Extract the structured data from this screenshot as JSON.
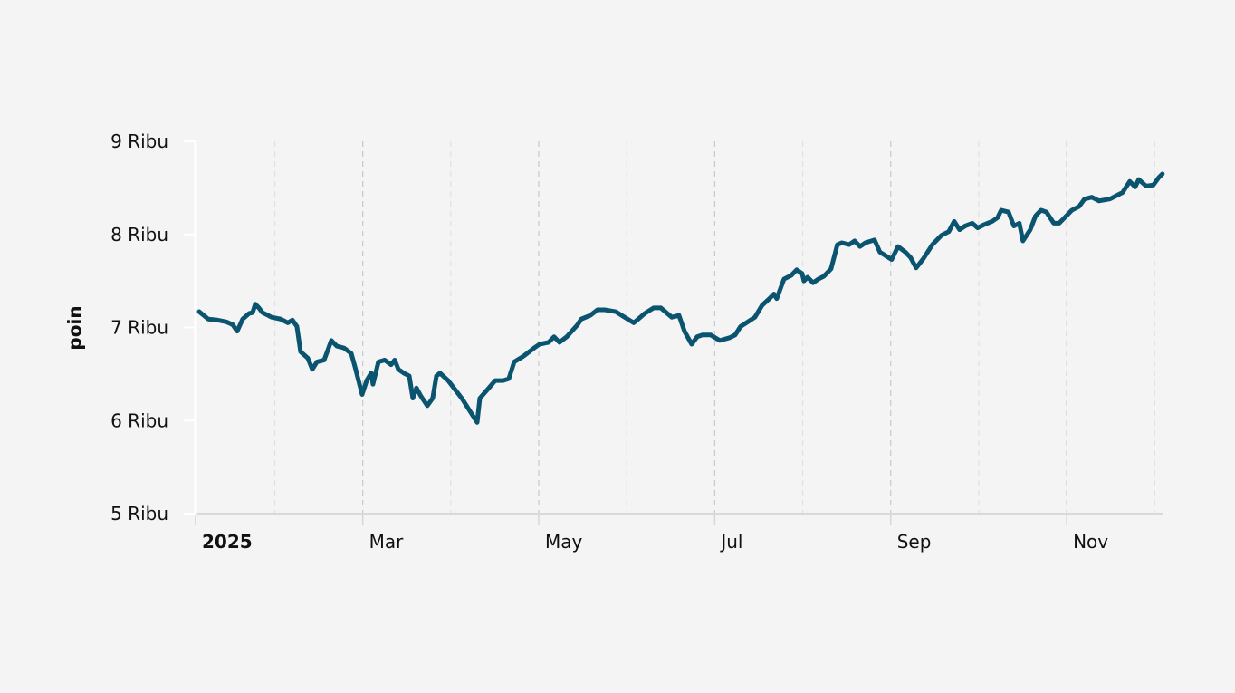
{
  "chart_data": {
    "type": "line",
    "y_label": "poin",
    "color": "#0b5470",
    "xlim": [
      1.1,
      12.1
    ],
    "xticks": [
      {
        "value": 1.1,
        "label": "2025"
      },
      {
        "value": 3,
        "label": "Mar"
      },
      {
        "value": 5,
        "label": "May"
      },
      {
        "value": 7,
        "label": "Jul"
      },
      {
        "value": 9,
        "label": "Sep"
      },
      {
        "value": 11,
        "label": "Nov"
      }
    ],
    "xminor_ticks": [
      2,
      4,
      6,
      8,
      10,
      12
    ],
    "ylim": [
      5000,
      9000
    ],
    "yticks": [
      {
        "value": 5000,
        "label": "5 Ribu"
      },
      {
        "value": 6000,
        "label": "6 Ribu"
      },
      {
        "value": 7000,
        "label": "7 Ribu"
      },
      {
        "value": 8000,
        "label": "8 Ribu"
      },
      {
        "value": 9000,
        "label": "9 Ribu"
      }
    ],
    "grid": true,
    "x": [
      1.141,
      1.244,
      1.347,
      1.45,
      1.522,
      1.573,
      1.635,
      1.707,
      1.748,
      1.779,
      1.82,
      1.861,
      1.964,
      2.067,
      2.149,
      2.201,
      2.252,
      2.293,
      2.376,
      2.427,
      2.479,
      2.561,
      2.643,
      2.705,
      2.787,
      2.87,
      2.911,
      2.952,
      2.993,
      3.045,
      3.096,
      3.116,
      3.178,
      3.25,
      3.322,
      3.363,
      3.405,
      3.466,
      3.528,
      3.569,
      3.61,
      3.662,
      3.734,
      3.795,
      3.837,
      3.878,
      3.97,
      4.125,
      4.3,
      4.331,
      4.433,
      4.505,
      4.598,
      4.66,
      4.721,
      4.824,
      4.948,
      5.009,
      5.112,
      5.174,
      5.236,
      5.318,
      5.442,
      5.483,
      5.586,
      5.668,
      5.75,
      5.874,
      5.977,
      6.08,
      6.131,
      6.203,
      6.306,
      6.388,
      6.512,
      6.594,
      6.656,
      6.738,
      6.8,
      6.861,
      6.954,
      7.057,
      7.17,
      7.232,
      7.293,
      7.375,
      7.457,
      7.54,
      7.622,
      7.673,
      7.705,
      7.787,
      7.87,
      7.931,
      7.993,
      8.014,
      8.055,
      8.117,
      8.178,
      8.24,
      8.322,
      8.394,
      8.446,
      8.528,
      8.59,
      8.651,
      8.713,
      8.816,
      8.877,
      9.011,
      9.083,
      9.166,
      9.227,
      9.289,
      9.372,
      9.474,
      9.577,
      9.66,
      9.721,
      9.783,
      9.845,
      9.927,
      9.989,
      10.051,
      10.154,
      10.215,
      10.256,
      10.339,
      10.4,
      10.462,
      10.503,
      10.586,
      10.647,
      10.709,
      10.77,
      10.853,
      10.915,
      10.977,
      11.059,
      11.141,
      11.203,
      11.285,
      11.367,
      11.491,
      11.573,
      11.635,
      11.717,
      11.778,
      11.819,
      11.902,
      11.984,
      12.046,
      12.088
    ],
    "values": [
      7170,
      7090,
      7080,
      7060,
      7030,
      6960,
      7090,
      7150,
      7160,
      7250,
      7210,
      7160,
      7110,
      7090,
      7050,
      7080,
      7010,
      6740,
      6670,
      6550,
      6630,
      6650,
      6860,
      6800,
      6780,
      6720,
      6580,
      6430,
      6280,
      6430,
      6510,
      6390,
      6630,
      6650,
      6600,
      6650,
      6550,
      6510,
      6480,
      6240,
      6350,
      6260,
      6160,
      6240,
      6480,
      6510,
      6430,
      6240,
      5980,
      6240,
      6350,
      6430,
      6430,
      6450,
      6630,
      6690,
      6780,
      6820,
      6840,
      6900,
      6840,
      6900,
      7030,
      7090,
      7130,
      7190,
      7190,
      7170,
      7110,
      7050,
      7090,
      7150,
      7210,
      7210,
      7110,
      7130,
      6960,
      6820,
      6900,
      6920,
      6920,
      6860,
      6890,
      6920,
      7010,
      7060,
      7110,
      7240,
      7310,
      7360,
      7310,
      7520,
      7560,
      7620,
      7580,
      7500,
      7540,
      7480,
      7520,
      7550,
      7630,
      7890,
      7910,
      7890,
      7930,
      7870,
      7910,
      7940,
      7810,
      7730,
      7870,
      7810,
      7750,
      7640,
      7740,
      7890,
      7990,
      8030,
      8140,
      8050,
      8090,
      8120,
      8070,
      8100,
      8140,
      8180,
      8260,
      8240,
      8090,
      8120,
      7930,
      8050,
      8200,
      8260,
      8240,
      8120,
      8120,
      8180,
      8260,
      8300,
      8380,
      8400,
      8360,
      8380,
      8420,
      8450,
      8570,
      8510,
      8590,
      8520,
      8530,
      8610,
      8650
    ]
  }
}
